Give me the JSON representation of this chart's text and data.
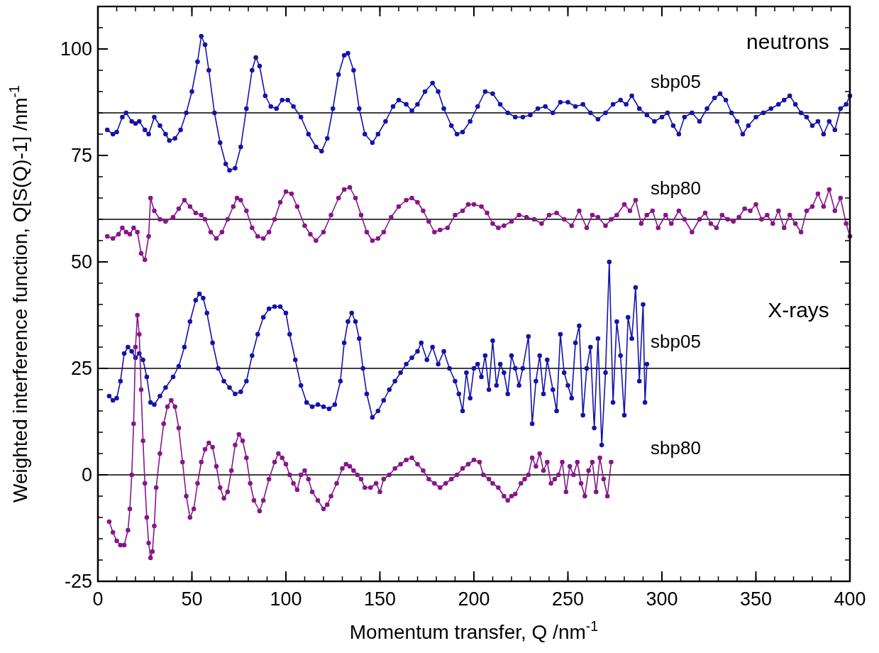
{
  "chart_data": {
    "type": "line",
    "xlabel": "Momentum transfer, Q /nm$^{-1}$",
    "ylabel": "Weighted interference function,  Q[S(Q)-1] /nm$^{-1}$",
    "xlim": [
      0,
      400
    ],
    "xticks": [
      0,
      50,
      100,
      150,
      200,
      250,
      300,
      350,
      400
    ],
    "ylim": [
      -25,
      110
    ],
    "yticks": [
      -25,
      0,
      25,
      50,
      75,
      100
    ],
    "marker": "circle",
    "line_style": "solid",
    "grid": false,
    "annotations": [
      "neutrons",
      "X-rays"
    ],
    "ref_lines": [
      {
        "axis": "y",
        "value": 85,
        "color": "#000000"
      },
      {
        "axis": "y",
        "value": 60,
        "color": "#000000"
      },
      {
        "axis": "y",
        "value": 25,
        "color": "#000000"
      },
      {
        "axis": "y",
        "value": 0,
        "color": "#000000"
      }
    ],
    "series": [
      {
        "name": "sbp05",
        "color": "#1414a8",
        "x": [
          5,
          8,
          10,
          13,
          15,
          18,
          20,
          22,
          25,
          27,
          30,
          33,
          36,
          38,
          41,
          44,
          47,
          50,
          53,
          55,
          57,
          59,
          62,
          65,
          68,
          70,
          73,
          76,
          79,
          82,
          84,
          86,
          89,
          92,
          95,
          98,
          101,
          104,
          108,
          112,
          116,
          119,
          122,
          125,
          128,
          131,
          133,
          136,
          139,
          142,
          146,
          149,
          153,
          157,
          160,
          164,
          167,
          170,
          174,
          178,
          181,
          184,
          188,
          191,
          194,
          198,
          202,
          206,
          210,
          214,
          218,
          222,
          226,
          230,
          234,
          238,
          242,
          246,
          250,
          254,
          258,
          262,
          266,
          270,
          274,
          278,
          281,
          284,
          288,
          292,
          296,
          300,
          303,
          306,
          309,
          312,
          316,
          320,
          324,
          328,
          331,
          334,
          337,
          340,
          343,
          346,
          350,
          354,
          358,
          362,
          365,
          368,
          371,
          374,
          377,
          380,
          383,
          386,
          389,
          392,
          395,
          398,
          400
        ],
        "values": [
          81,
          80,
          80.5,
          84,
          85,
          83,
          82.5,
          83,
          81,
          80,
          84,
          82,
          80,
          78.5,
          79,
          81,
          85,
          90,
          97,
          103,
          101,
          95,
          85,
          78,
          73,
          71.5,
          72,
          77,
          86,
          95,
          98,
          96,
          89,
          86.5,
          86,
          88,
          88,
          86.5,
          84,
          80,
          77,
          76,
          79,
          86,
          94,
          98.5,
          99,
          95,
          86,
          80,
          78,
          80,
          83,
          86.5,
          88,
          87,
          85.5,
          87,
          90,
          92,
          90,
          86,
          82,
          80,
          80.5,
          83,
          86.5,
          90,
          89.5,
          87,
          85,
          84,
          84,
          84.5,
          86,
          86.5,
          85,
          87.5,
          87.5,
          86.5,
          87,
          85,
          83.5,
          85,
          87,
          88,
          87,
          89,
          86,
          84.5,
          83,
          84,
          85,
          82,
          80,
          84,
          85,
          83,
          86,
          88.5,
          89.5,
          88,
          85,
          83,
          80,
          82,
          84,
          85,
          86,
          87,
          88,
          89,
          87,
          85,
          84,
          82,
          83,
          80,
          83,
          81,
          86,
          87,
          89
        ]
      },
      {
        "name": "sbp80",
        "color": "#86168a",
        "x": [
          5,
          8,
          11,
          13,
          15,
          17,
          19,
          21,
          23,
          25,
          27,
          28,
          30,
          33,
          36,
          40,
          43,
          46,
          49,
          52,
          55,
          57,
          60,
          63,
          66,
          69,
          72,
          74,
          76,
          79,
          82,
          85,
          88,
          91,
          94,
          97,
          100,
          103,
          106,
          110,
          113,
          116,
          120,
          124,
          128,
          131,
          134,
          137,
          140,
          143,
          146,
          149,
          152,
          156,
          160,
          164,
          167,
          170,
          173,
          176,
          179,
          182,
          186,
          190,
          194,
          197,
          200,
          204,
          207,
          210,
          213,
          216,
          220,
          224,
          228,
          232,
          236,
          240,
          244,
          248,
          252,
          256,
          260,
          263,
          266,
          270,
          273,
          276,
          280,
          283,
          286,
          289,
          292,
          295,
          298,
          302,
          305,
          309,
          312,
          316,
          320,
          323,
          326,
          329,
          332,
          335,
          338,
          341,
          344,
          347,
          350,
          353,
          356,
          359,
          362,
          365,
          368,
          371,
          374,
          377,
          380,
          383,
          386,
          389,
          392,
          395,
          398,
          400
        ],
        "values": [
          56,
          55.5,
          56.5,
          58,
          57,
          56.5,
          58,
          57,
          52,
          50.5,
          56,
          65,
          62,
          60,
          59.5,
          60.5,
          62.5,
          64.5,
          63,
          61.5,
          61,
          60,
          57,
          55.5,
          57,
          60,
          63,
          65,
          64.5,
          62,
          58,
          56,
          55.5,
          57,
          60,
          64,
          66.5,
          66,
          63,
          58.5,
          56.5,
          55,
          57,
          61,
          65,
          67,
          67.5,
          65,
          61,
          57,
          55,
          55.5,
          57,
          60.5,
          63,
          64.5,
          65,
          64,
          62,
          59.5,
          57,
          57.5,
          58,
          61,
          62,
          63.5,
          63.5,
          63,
          61.5,
          59,
          58,
          58.5,
          59.5,
          61,
          60.5,
          60,
          59,
          61,
          61.5,
          60,
          58.5,
          62,
          58,
          61,
          60.5,
          58.5,
          60,
          61,
          63.5,
          62,
          64.5,
          59,
          61,
          62,
          58,
          61,
          59,
          62,
          60,
          57,
          60,
          61.5,
          59,
          58,
          61,
          60,
          59.5,
          60.5,
          62.5,
          62,
          63.5,
          60,
          61,
          59,
          62,
          58,
          61,
          59,
          57,
          62,
          63,
          66,
          63,
          67,
          62,
          65,
          59,
          56
        ]
      },
      {
        "name": "sbp05",
        "color": "#1414a8",
        "x": [
          6,
          8,
          10,
          12,
          14,
          16,
          18,
          20,
          22,
          24,
          26,
          28,
          30,
          33,
          36,
          40,
          43,
          46,
          49,
          52,
          54,
          56,
          58,
          61,
          64,
          67,
          70,
          73,
          76,
          79,
          82,
          85,
          88,
          91,
          94,
          97,
          100,
          102,
          105,
          108,
          111,
          114,
          117,
          120,
          123,
          126,
          129,
          131,
          133,
          135,
          137,
          139,
          141,
          143,
          146,
          149,
          152,
          155,
          158,
          161,
          164,
          167,
          170,
          172,
          175,
          178,
          181,
          184,
          187,
          190,
          192,
          194,
          196,
          198,
          200,
          202,
          204,
          206,
          208,
          210,
          212,
          214,
          216,
          218,
          220,
          222,
          224,
          226,
          229,
          231,
          233,
          235,
          237,
          239,
          242,
          244,
          246,
          248,
          250,
          252,
          254,
          256,
          258,
          260,
          262,
          264,
          266,
          268,
          270,
          272,
          274,
          276,
          278,
          280,
          282,
          284,
          286,
          288,
          290,
          291,
          292
        ],
        "values": [
          18.5,
          17.5,
          18,
          22,
          28.5,
          30,
          29,
          27.5,
          28.5,
          27,
          23,
          17,
          16.5,
          18.5,
          20.5,
          23,
          25.5,
          30,
          36,
          41,
          42.5,
          41.5,
          38,
          31,
          25,
          22,
          20.5,
          19,
          19.5,
          22,
          28,
          33,
          37,
          39,
          39.5,
          39.5,
          38,
          33,
          27,
          21,
          17,
          16,
          16.5,
          16,
          15.5,
          16.5,
          22,
          31,
          36,
          38,
          36,
          32,
          25,
          19,
          13.5,
          15,
          17.5,
          20,
          22,
          24,
          26,
          27.5,
          29,
          31,
          27,
          30,
          26,
          29,
          25,
          22,
          19,
          15,
          24,
          18,
          25,
          26,
          23,
          28,
          20,
          31.5,
          21,
          26,
          24,
          19,
          28,
          25,
          21,
          25,
          32.5,
          12,
          22,
          28,
          19,
          27,
          20,
          15,
          33,
          24,
          21,
          18,
          31,
          35,
          14,
          25,
          30,
          11,
          32,
          7,
          24,
          50,
          17,
          36,
          28,
          14,
          37,
          32,
          44,
          22,
          40,
          17,
          26
        ]
      },
      {
        "name": "sbp80",
        "color": "#86168a",
        "x": [
          6,
          8,
          10,
          12,
          14,
          16,
          17,
          18,
          19,
          20,
          21,
          22,
          23,
          24,
          25,
          26,
          27,
          28,
          29,
          30,
          31,
          33,
          35,
          37,
          39,
          41,
          43,
          45,
          47,
          49,
          51,
          53,
          55,
          57,
          59,
          61,
          63,
          65,
          67,
          69,
          71,
          73,
          75,
          77,
          79,
          81,
          83,
          86,
          88,
          91,
          94,
          96,
          98,
          100,
          102,
          104,
          106,
          108,
          110,
          112,
          114,
          117,
          120,
          122,
          124,
          127,
          130,
          132,
          134,
          136,
          138,
          140,
          142,
          145,
          148,
          150,
          152,
          155,
          158,
          161,
          164,
          167,
          170,
          173,
          176,
          179,
          182,
          185,
          188,
          191,
          194,
          197,
          200,
          203,
          205,
          208,
          210,
          213,
          216,
          218,
          220,
          222,
          225,
          227,
          229,
          231,
          233,
          235,
          237,
          239,
          241,
          243,
          245,
          247,
          249,
          251,
          253,
          255,
          257,
          259,
          261,
          263,
          265,
          267,
          269,
          271,
          273
        ],
        "values": [
          -11,
          -13.5,
          -15.5,
          -16.5,
          -16.5,
          -13,
          -8,
          0,
          12,
          30,
          37.5,
          33,
          20,
          8,
          -2,
          -10,
          -16,
          -19.5,
          -18,
          -12,
          -3,
          5,
          12,
          16,
          17.5,
          16,
          11,
          3,
          -5,
          -10,
          -8,
          -2,
          3,
          6,
          7.5,
          6.5,
          2,
          -3,
          -5.5,
          -4,
          1,
          7,
          9.5,
          8,
          4,
          -2,
          -6,
          -8.5,
          -6,
          -1,
          3,
          5,
          4,
          2.5,
          0,
          -2,
          -3.5,
          0,
          1,
          -1,
          -4,
          -6,
          -8,
          -7,
          -5,
          -2,
          1.5,
          2.5,
          2,
          1,
          0,
          -1,
          -3,
          -3,
          -2,
          -4,
          -1,
          0,
          1.5,
          2.5,
          3.5,
          4,
          2.5,
          1,
          -1,
          -2,
          -3,
          -2,
          -1,
          0,
          1.5,
          2.5,
          3.5,
          3,
          0,
          -1,
          -2,
          -3,
          -5,
          -6,
          -5,
          -4.5,
          -2,
          -1,
          0,
          4,
          2,
          5,
          1,
          3,
          -2,
          -1,
          0,
          3,
          -4,
          2,
          0,
          3,
          -2,
          -5,
          1,
          3,
          -4,
          4,
          -1,
          -5,
          3
        ]
      }
    ]
  }
}
